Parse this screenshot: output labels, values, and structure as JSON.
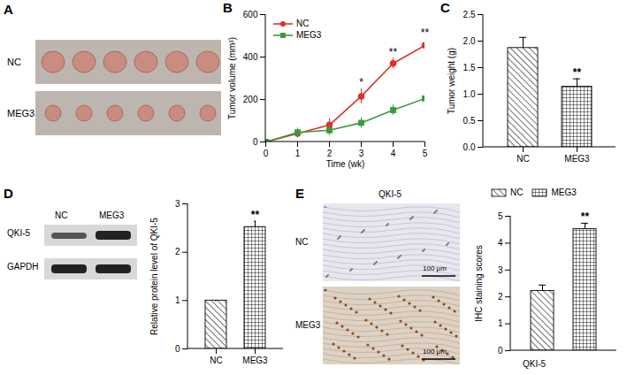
{
  "chart_data": [
    {
      "panel": "B",
      "type": "line",
      "xlabel": "Time (wk)",
      "ylabel": "Tumor volume (mm³)",
      "x": [
        0,
        1,
        2,
        3,
        4,
        5
      ],
      "xlim": [
        0,
        5
      ],
      "xticks": [
        0,
        1,
        2,
        3,
        4,
        5
      ],
      "ylim": [
        0,
        600
      ],
      "yticks": [
        0,
        200,
        400,
        600
      ],
      "grid": false,
      "legend": "top-left",
      "series": [
        {
          "name": "NC",
          "color": "#e0302a",
          "marker": "circle",
          "values": [
            0,
            40,
            80,
            215,
            370,
            455
          ],
          "errors": [
            0,
            20,
            30,
            35,
            25,
            30
          ]
        },
        {
          "name": "MEG3",
          "color": "#3a9a3a",
          "marker": "square",
          "values": [
            0,
            45,
            55,
            90,
            150,
            205
          ],
          "errors": [
            0,
            20,
            25,
            25,
            25,
            30
          ]
        }
      ],
      "annotations": [
        {
          "x": 3,
          "text": "*"
        },
        {
          "x": 4,
          "text": "**"
        },
        {
          "x": 5,
          "text": "**"
        }
      ]
    },
    {
      "panel": "C",
      "type": "bar",
      "ylabel": "Tumor weight (g)",
      "categories": [
        "NC",
        "MEG3"
      ],
      "values": [
        1.87,
        1.14
      ],
      "errors": [
        0.2,
        0.15
      ],
      "ylim": [
        0,
        2.5
      ],
      "yticks": [
        {
          "value": 0,
          "label": "0.0"
        },
        {
          "value": 0.5,
          "label": "0.5"
        },
        {
          "value": 1,
          "label": "1.0"
        },
        {
          "value": 1.5,
          "label": "1.5"
        },
        {
          "value": 2,
          "label": "2.0"
        },
        {
          "value": 2.5,
          "label": "2.5"
        }
      ],
      "grid": false,
      "annotations": [
        {
          "category": "MEG3",
          "text": "**"
        }
      ]
    },
    {
      "panel": "D",
      "type": "bar",
      "ylabel": "Relative protein level of QKI-5",
      "categories": [
        "NC",
        "MEG3"
      ],
      "values": [
        1,
        2.52
      ],
      "errors": [
        0,
        0.12
      ],
      "ylim": [
        0,
        3
      ],
      "yticks": [
        0,
        1,
        2,
        3
      ],
      "grid": false,
      "annotations": [
        {
          "category": "MEG3",
          "text": "**"
        }
      ]
    },
    {
      "panel": "E",
      "type": "bar",
      "ylabel": "IHC staining scores",
      "xlabel": "QKI-5",
      "categories": [
        "NC",
        "MEG3"
      ],
      "values": [
        2.22,
        4.52
      ],
      "errors": [
        0.22,
        0.22
      ],
      "ylim": [
        0,
        5
      ],
      "yticks": [
        0,
        1,
        2,
        3,
        4,
        5
      ],
      "grid": false,
      "legend": "top",
      "tick_labels": "y",
      "annotations": [
        {
          "category": "MEG3",
          "text": "**"
        }
      ]
    }
  ],
  "images": {
    "A": {
      "panel": "A",
      "rows": [
        "NC",
        "MEG3"
      ]
    },
    "D": {
      "panel": "D",
      "lanes": [
        "NC",
        "MEG3"
      ],
      "bands": [
        "QKI-5",
        "GAPDH"
      ]
    },
    "E": {
      "panel": "E",
      "title": "QKI-5",
      "rows": [
        "NC",
        "MEG3"
      ],
      "scale_bar": "100 μm"
    }
  }
}
